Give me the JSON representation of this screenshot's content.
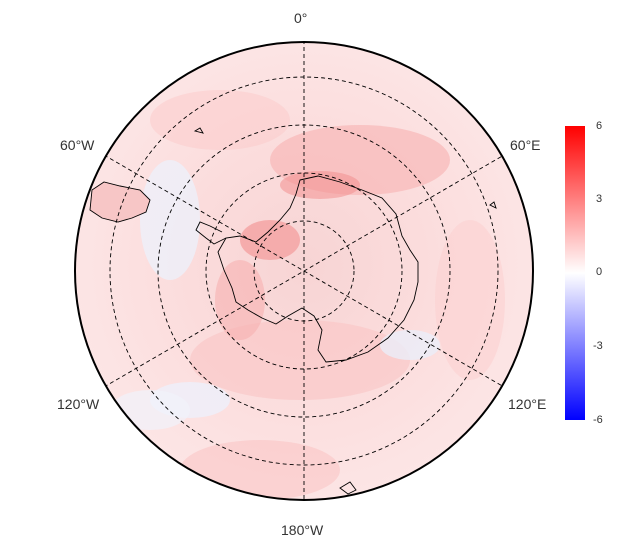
{
  "map": {
    "projection": "south-polar-stereographic",
    "longitude_labels": {
      "top": "0°",
      "upper_left": "60°W",
      "upper_right": "60°E",
      "lower_left": "120°W",
      "lower_right": "120°E",
      "bottom": "180°W"
    },
    "field_colors": {
      "positive": "#ff0000",
      "zero": "#ffffff",
      "negative": "#0000ff",
      "coast": "#000000",
      "grid": "#000000"
    }
  },
  "colorbar": {
    "ticks": [
      "6",
      "3",
      "0",
      "-3",
      "-6"
    ]
  }
}
